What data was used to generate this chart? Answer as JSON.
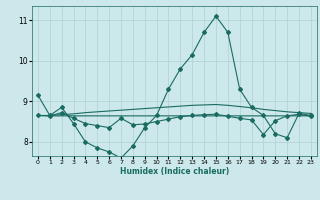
{
  "title": "",
  "xlabel": "Humidex (Indice chaleur)",
  "ylabel": "",
  "xlim": [
    -0.5,
    23.5
  ],
  "ylim": [
    7.65,
    11.35
  ],
  "yticks": [
    8,
    9,
    10,
    11
  ],
  "xticks": [
    0,
    1,
    2,
    3,
    4,
    5,
    6,
    7,
    8,
    9,
    10,
    11,
    12,
    13,
    14,
    15,
    16,
    17,
    18,
    19,
    20,
    21,
    22,
    23
  ],
  "background_color": "#cce8ea",
  "grid_color": "#b0d0d3",
  "line_color": "#1a6b62",
  "lines": [
    {
      "x": [
        0,
        1,
        2,
        3,
        4,
        5,
        6,
        7,
        8,
        9,
        10,
        11,
        12,
        13,
        14,
        15,
        16,
        17,
        18,
        19,
        20,
        21,
        22,
        23
      ],
      "y": [
        9.15,
        8.65,
        8.85,
        8.45,
        8.0,
        7.85,
        7.75,
        7.6,
        7.9,
        8.35,
        8.65,
        9.3,
        9.8,
        10.15,
        10.7,
        11.1,
        10.7,
        9.3,
        8.85,
        8.65,
        8.2,
        8.1,
        8.7,
        8.65
      ],
      "marker": "D",
      "markersize": 2.0
    },
    {
      "x": [
        0,
        1,
        2,
        3,
        4,
        5,
        6,
        7,
        8,
        9,
        10,
        11,
        12,
        13,
        14,
        15,
        16,
        17,
        18,
        19,
        20,
        21,
        22,
        23
      ],
      "y": [
        8.65,
        8.64,
        8.64,
        8.64,
        8.64,
        8.64,
        8.64,
        8.64,
        8.64,
        8.64,
        8.64,
        8.64,
        8.64,
        8.64,
        8.64,
        8.64,
        8.64,
        8.64,
        8.64,
        8.64,
        8.64,
        8.64,
        8.64,
        8.64
      ],
      "marker": null,
      "markersize": 0
    },
    {
      "x": [
        0,
        1,
        2,
        3,
        4,
        5,
        6,
        7,
        8,
        9,
        10,
        11,
        12,
        13,
        14,
        15,
        16,
        17,
        18,
        19,
        20,
        21,
        22,
        23
      ],
      "y": [
        8.65,
        8.65,
        8.67,
        8.69,
        8.72,
        8.74,
        8.76,
        8.78,
        8.8,
        8.82,
        8.84,
        8.86,
        8.88,
        8.9,
        8.91,
        8.92,
        8.9,
        8.87,
        8.84,
        8.8,
        8.77,
        8.74,
        8.72,
        8.7
      ],
      "marker": null,
      "markersize": 0
    },
    {
      "x": [
        0,
        1,
        2,
        3,
        4,
        5,
        6,
        7,
        8,
        9,
        10,
        11,
        12,
        13,
        14,
        15,
        16,
        17,
        18,
        19,
        20,
        21,
        22,
        23
      ],
      "y": [
        8.65,
        8.64,
        8.72,
        8.58,
        8.45,
        8.4,
        8.35,
        8.58,
        8.42,
        8.44,
        8.5,
        8.56,
        8.62,
        8.65,
        8.67,
        8.68,
        8.63,
        8.58,
        8.54,
        8.18,
        8.52,
        8.64,
        8.68,
        8.63
      ],
      "marker": "D",
      "markersize": 2.0
    }
  ]
}
